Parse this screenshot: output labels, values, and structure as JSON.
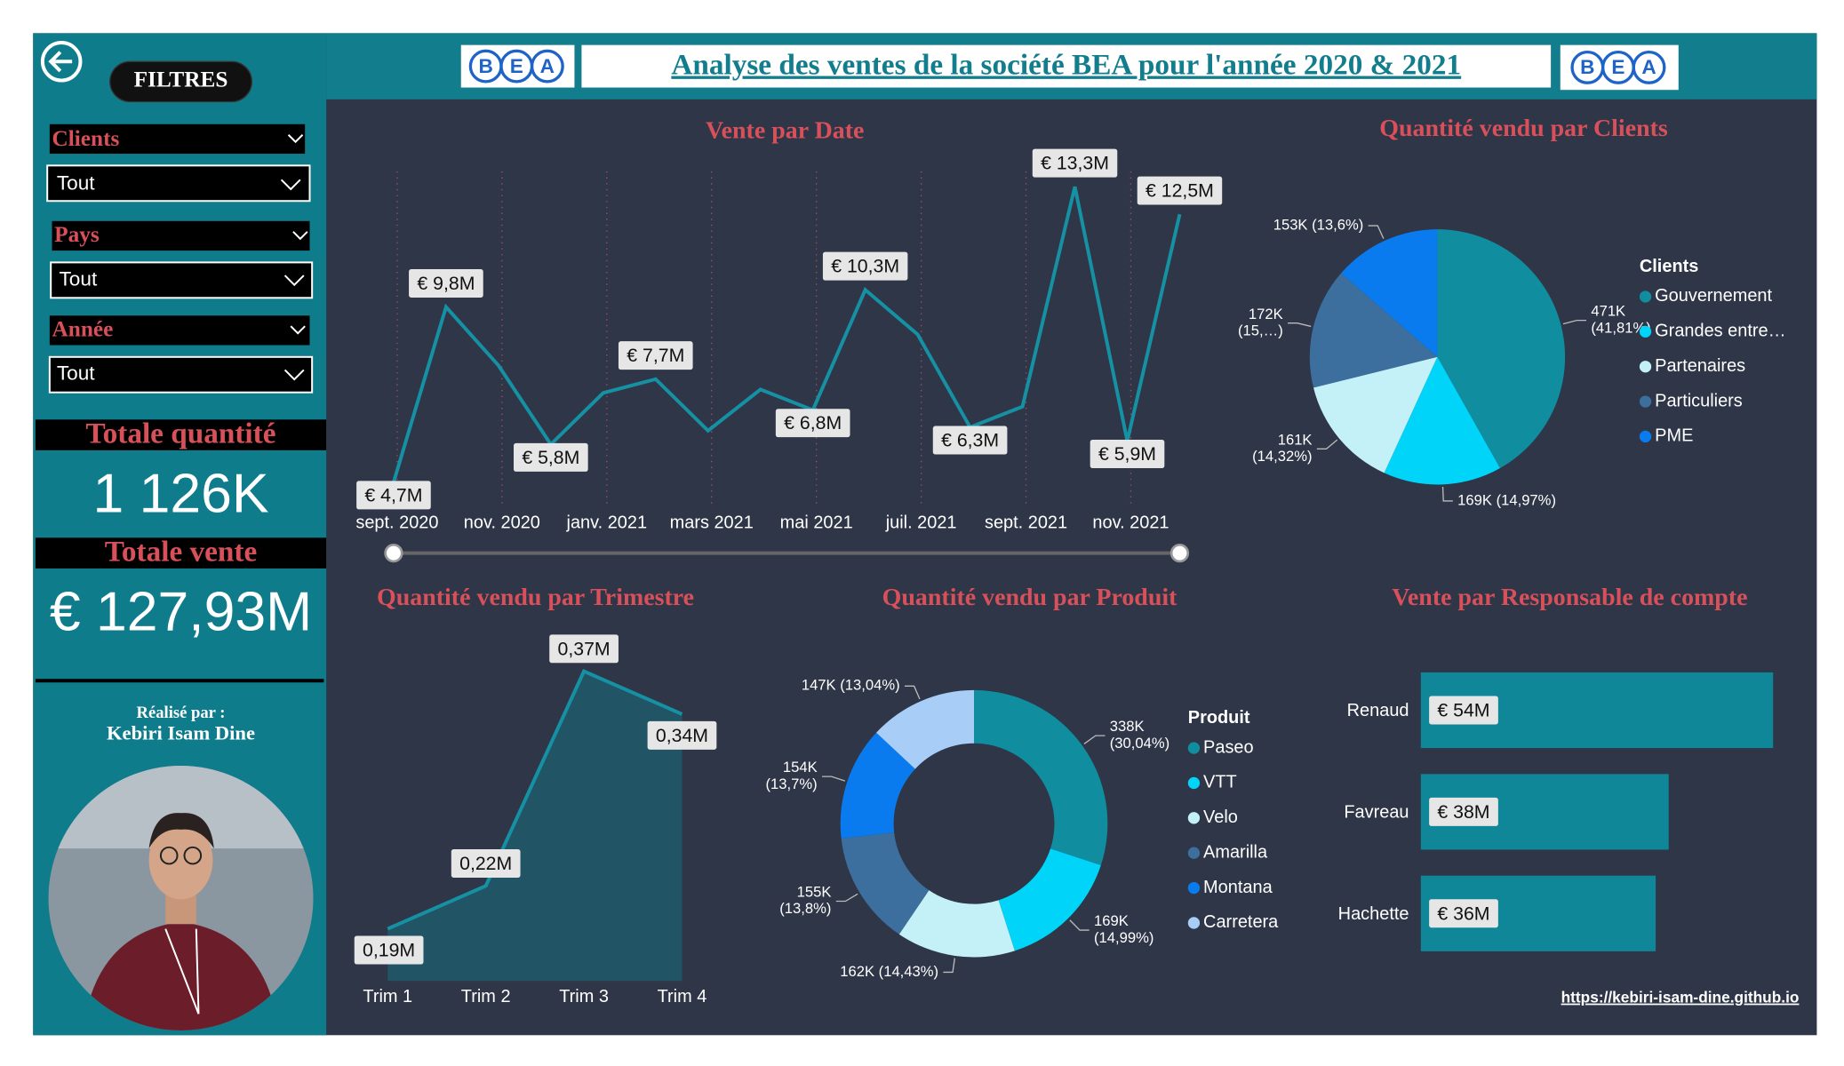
{
  "header": {
    "title": "Analyse des ventes de la société BEA pour l'année 2020 & 2021",
    "logo_letters": [
      "B",
      "E",
      "A"
    ]
  },
  "sidebar": {
    "filter_button": "FILTRES",
    "filters": [
      {
        "label": "Clients",
        "value": "Tout"
      },
      {
        "label": "Pays",
        "value": "Tout"
      },
      {
        "label": "Année",
        "value": "Tout"
      }
    ],
    "kpis": [
      {
        "label": "Totale quantité",
        "value": "1 126K"
      },
      {
        "label": "Totale vente",
        "value": "€ 127,93M"
      }
    ],
    "credit": {
      "label": "Réalisé par :",
      "name": "Kebiri Isam Dine"
    }
  },
  "footer": {
    "url": "https://kebiri-isam-dine.github.io"
  },
  "chart_data": [
    {
      "type": "line",
      "title": "Vente par Date",
      "categories": [
        "sept. 2020",
        null,
        "nov. 2020",
        null,
        "janv. 2021",
        null,
        "mars 2021",
        null,
        "mai 2021",
        null,
        "juil. 2021",
        null,
        "sept. 2021",
        null,
        "nov. 2021",
        null
      ],
      "values": [
        4.7,
        9.8,
        8.1,
        5.8,
        7.3,
        7.7,
        6.2,
        7.4,
        6.8,
        10.3,
        9.0,
        6.3,
        6.9,
        13.3,
        5.9,
        12.5
      ],
      "value_labels": [
        "€ 4,7M",
        "€ 9,8M",
        null,
        "€ 5,8M",
        null,
        "€ 7,7M",
        null,
        null,
        "€ 6,8M",
        "€ 10,3M",
        null,
        "€ 6,3M",
        null,
        "€ 13,3M",
        "€ 5,9M",
        "€ 12,5M"
      ],
      "color": "#1690A3"
    },
    {
      "type": "pie",
      "title": "Quantité vendu par Clients",
      "legend_title": "Clients",
      "categories": [
        "Gouvernement",
        "Grandes entre…",
        "Partenaires",
        "Particuliers",
        "PME"
      ],
      "values": [
        471,
        169,
        161,
        172,
        153
      ],
      "value_labels": [
        [
          "471K",
          "(41,81%)"
        ],
        [
          "169K (14,97%)"
        ],
        [
          "161K",
          "(14,32%)"
        ],
        [
          "172K",
          "(15,…)"
        ],
        [
          "153K (13,6%)"
        ]
      ],
      "colors": [
        "#118DA0",
        "#00D4F8",
        "#C4F1F7",
        "#3C6E9E",
        "#0A7BEF"
      ]
    },
    {
      "type": "area",
      "title": "Quantité vendu par Trimestre",
      "categories": [
        "Trim 1",
        "Trim 2",
        "Trim 3",
        "Trim 4"
      ],
      "values": [
        0.19,
        0.22,
        0.37,
        0.34
      ],
      "value_labels": [
        "0,19M",
        "0,22M",
        "0,37M",
        "0,34M"
      ],
      "color": "#1690A3"
    },
    {
      "type": "donut",
      "title": "Quantité vendu par Produit",
      "legend_title": "Produit",
      "categories": [
        "Paseo",
        "VTT",
        "Velo",
        "Amarilla",
        "Montana",
        "Carretera"
      ],
      "values": [
        338,
        169,
        162,
        155,
        154,
        147
      ],
      "value_labels": [
        [
          "338K",
          "(30,04%)"
        ],
        [
          "169K",
          "(14,99%)"
        ],
        [
          "162K (14,43%)"
        ],
        [
          "155K",
          "(13,8%)"
        ],
        [
          "154K",
          "(13,7%)"
        ],
        [
          "147K (13,04%)"
        ]
      ],
      "colors": [
        "#118DA0",
        "#00D4F8",
        "#C4F1F7",
        "#3C6E9E",
        "#0A7BEF",
        "#A8CEF8"
      ]
    },
    {
      "type": "bar",
      "title": "Vente par Responsable de compte",
      "categories": [
        "Renaud",
        "Favreau",
        "Hachette"
      ],
      "values": [
        54,
        38,
        36
      ],
      "value_labels": [
        "€ 54M",
        "€ 38M",
        "€ 36M"
      ],
      "color": "#0F8799"
    }
  ]
}
